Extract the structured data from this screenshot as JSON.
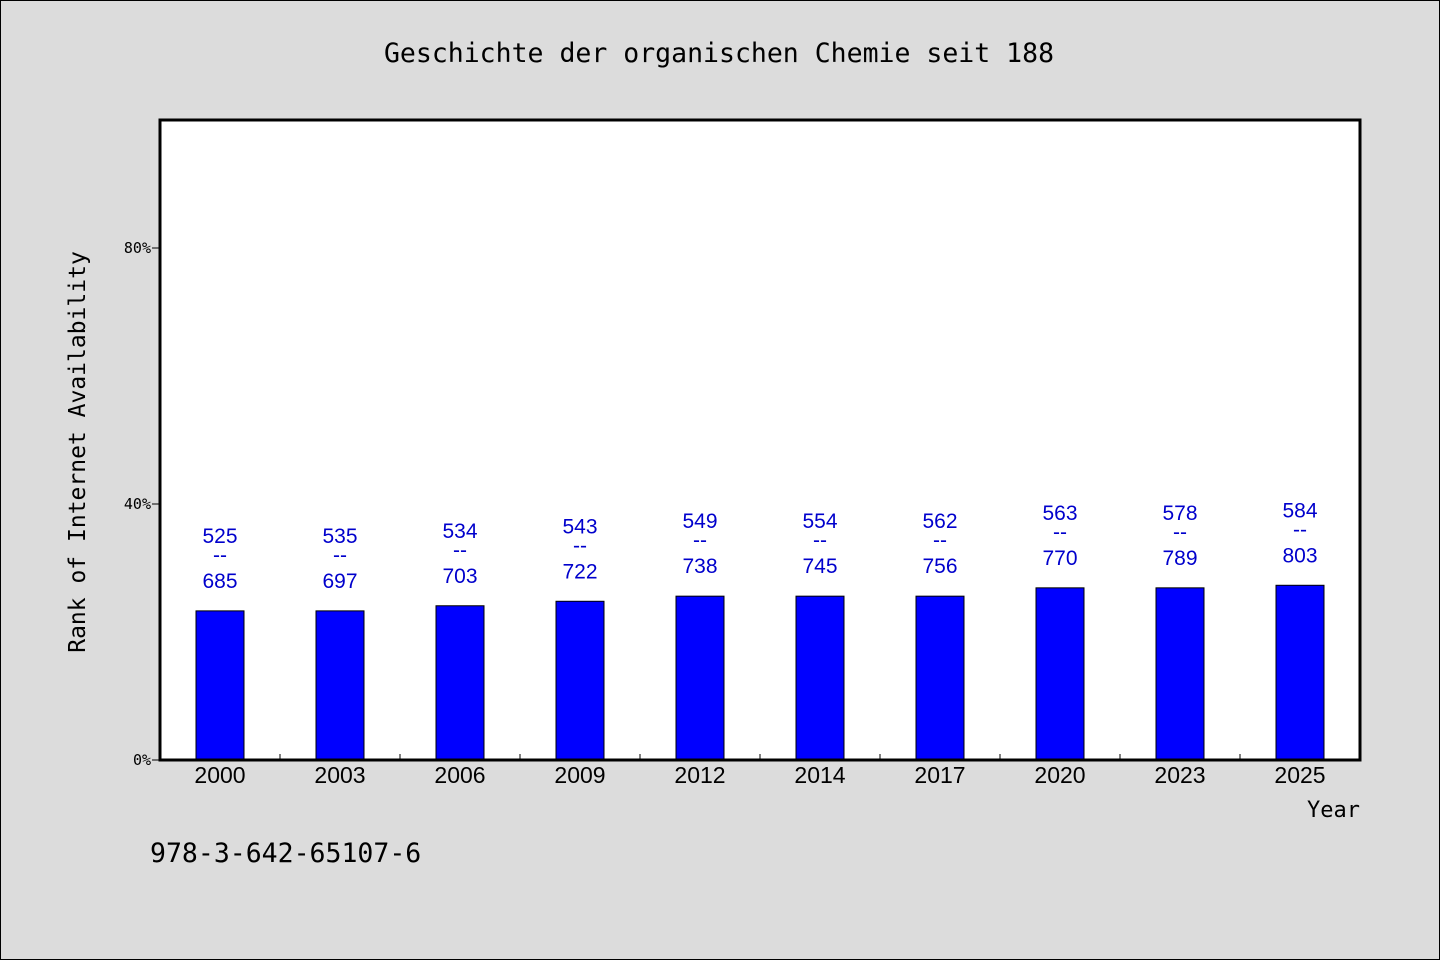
{
  "colors": {
    "background": "#dcdcdc",
    "plot_background": "#ffffff",
    "bar_fill": "#0000ff",
    "bar_stroke": "#000000",
    "data_label": "#0000cc",
    "axis": "#000000"
  },
  "footer_text": "978-3-642-65107-6",
  "chart_data": {
    "type": "bar",
    "title": "Geschichte der organischen Chemie seit 188",
    "xlabel": "Year",
    "ylabel": "Rank of Internet Availability",
    "categories": [
      "2000",
      "2003",
      "2006",
      "2009",
      "2012",
      "2014",
      "2017",
      "2020",
      "2023",
      "2025"
    ],
    "values": [
      23.3,
      23.3,
      24.1,
      24.8,
      25.6,
      25.6,
      25.6,
      26.9,
      26.9,
      27.3
    ],
    "ylim": [
      0,
      100
    ],
    "yticks": [
      0,
      40,
      80
    ],
    "ytick_labels": [
      "0%",
      "40%",
      "80%"
    ],
    "data_labels": [
      [
        "525",
        "--",
        "685"
      ],
      [
        "535",
        "--",
        "697"
      ],
      [
        "534",
        "--",
        "703"
      ],
      [
        "543",
        "--",
        "722"
      ],
      [
        "549",
        "--",
        "738"
      ],
      [
        "554",
        "--",
        "745"
      ],
      [
        "562",
        "--",
        "756"
      ],
      [
        "563",
        "--",
        "770"
      ],
      [
        "578",
        "--",
        "789"
      ],
      [
        "584",
        "--",
        "803"
      ]
    ],
    "grid": false,
    "legend": "none"
  }
}
